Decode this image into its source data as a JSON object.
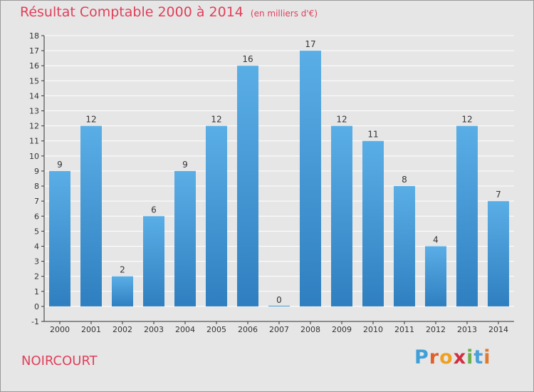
{
  "title": "Résultat Comptable 2000 à 2014",
  "unit": "(en milliers d'€)",
  "commune": "NOIRCOURT",
  "logo": {
    "letters": [
      "P",
      "r",
      "o",
      "x",
      "i",
      "t",
      "i"
    ]
  },
  "colors": {
    "bar_light": "#5aaee6",
    "bar_dark": "#2f7fc0",
    "title": "#e0405a",
    "background": "#e6e6e6",
    "grid": "#ffffff",
    "axis": "#333333"
  },
  "chart_data": {
    "type": "bar",
    "title": "Résultat Comptable 2000 à 2014",
    "xlabel": "",
    "ylabel": "",
    "categories": [
      "2000",
      "2001",
      "2002",
      "2003",
      "2004",
      "2005",
      "2006",
      "2007",
      "2008",
      "2009",
      "2010",
      "2011",
      "2012",
      "2013",
      "2014"
    ],
    "values": [
      9,
      12,
      2,
      6,
      9,
      12,
      16,
      0,
      17,
      12,
      11,
      8,
      4,
      12,
      7
    ],
    "ylim": [
      -1,
      18
    ],
    "yticks": [
      -1,
      0,
      1,
      2,
      3,
      4,
      5,
      6,
      7,
      8,
      9,
      10,
      11,
      12,
      13,
      14,
      15,
      16,
      17,
      18
    ],
    "grid": true
  }
}
